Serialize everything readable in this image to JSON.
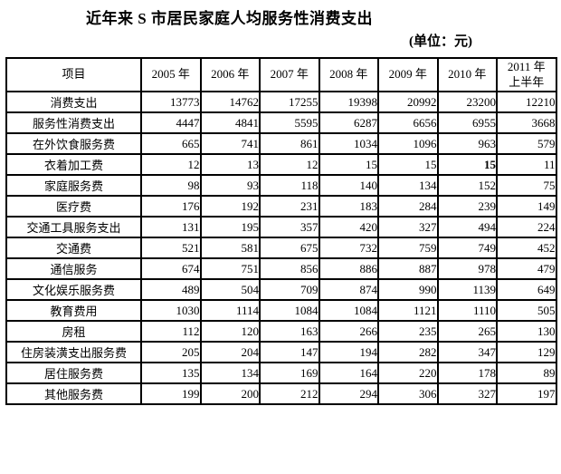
{
  "title": "近年来 S 市居民家庭人均服务性消费支出",
  "unit_note": "(单位：元)",
  "chart_data": {
    "type": "table",
    "title": "近年来 S 市居民家庭人均服务性消费支出",
    "unit": "元",
    "columns": [
      "项目",
      "2005 年",
      "2006 年",
      "2007 年",
      "2008 年",
      "2009 年",
      "2010 年",
      "2011 年\n上半年"
    ],
    "rows": [
      {
        "label": "消费支出",
        "values": [
          13773,
          14762,
          17255,
          19398,
          20992,
          23200,
          12210
        ]
      },
      {
        "label": "服务性消费支出",
        "values": [
          4447,
          4841,
          5595,
          6287,
          6656,
          6955,
          3668
        ]
      },
      {
        "label": "在外饮食服务费",
        "values": [
          665,
          741,
          861,
          1034,
          1096,
          963,
          579
        ]
      },
      {
        "label": "衣着加工费",
        "values": [
          12,
          13,
          12,
          15,
          15,
          15,
          11
        ],
        "bold_value_indices": [
          5
        ]
      },
      {
        "label": "家庭服务费",
        "values": [
          98,
          93,
          118,
          140,
          134,
          152,
          75
        ]
      },
      {
        "label": "医疗费",
        "values": [
          176,
          192,
          231,
          183,
          284,
          239,
          149
        ]
      },
      {
        "label": "交通工具服务支出",
        "values": [
          131,
          195,
          357,
          420,
          327,
          494,
          224
        ]
      },
      {
        "label": "交通费",
        "values": [
          521,
          581,
          675,
          732,
          759,
          749,
          452
        ]
      },
      {
        "label": "通信服务",
        "values": [
          674,
          751,
          856,
          886,
          887,
          978,
          479
        ]
      },
      {
        "label": "文化娱乐服务费",
        "values": [
          489,
          504,
          709,
          874,
          990,
          1139,
          649
        ]
      },
      {
        "label": "教育费用",
        "values": [
          1030,
          1114,
          1084,
          1084,
          1121,
          1110,
          505
        ]
      },
      {
        "label": "房租",
        "values": [
          112,
          120,
          163,
          266,
          235,
          265,
          130
        ]
      },
      {
        "label": "住房装潢支出服务费",
        "values": [
          205,
          204,
          147,
          194,
          282,
          347,
          129
        ]
      },
      {
        "label": "居住服务费",
        "values": [
          135,
          134,
          169,
          164,
          220,
          178,
          89
        ]
      },
      {
        "label": "其他服务费",
        "values": [
          199,
          200,
          212,
          294,
          306,
          327,
          197
        ]
      }
    ]
  }
}
